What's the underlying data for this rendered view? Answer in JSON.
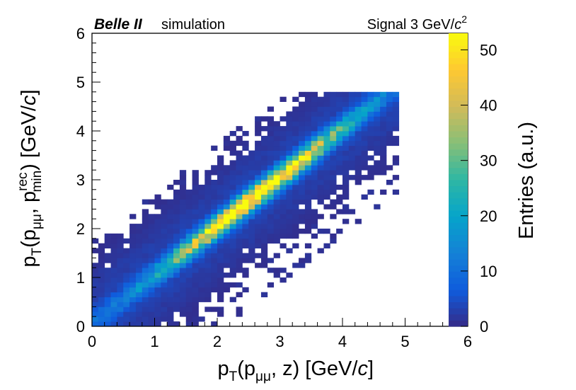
{
  "header": {
    "experiment": "Belle II",
    "tag": "simulation",
    "signal_prefix": "Signal 3 GeV/",
    "signal_unit": "c",
    "signal_exp": "2"
  },
  "axes": {
    "x_label": {
      "p": "p",
      "sub_T": "T",
      "open": "(p",
      "sub_mumu": "μμ",
      "rest": ", z) [GeV/",
      "unit": "c",
      "close": "]"
    },
    "y_label": {
      "p": "p",
      "sub_T": "T",
      "open": "(p",
      "sub_mumu": "μμ",
      "comma": ", p",
      "sup_rec": "rec",
      "sub_min": "min",
      "rest": ") [GeV/",
      "unit": "c",
      "close": "]"
    },
    "z_label": "Entries (a.u.)"
  },
  "colors": {
    "palette": [
      "#352a87",
      "#0f5cdd",
      "#1481d6",
      "#06a4ca",
      "#2eb7a4",
      "#87bf77",
      "#d1bb59",
      "#fec832",
      "#f9fb0e"
    ],
    "frame": "#000000",
    "background": "#ffffff"
  },
  "chart_data": {
    "type": "heatmap",
    "title": "",
    "xlabel": "pT(pμμ, z) [GeV/c]",
    "ylabel": "pT(pμμ, pmin rec) [GeV/c]",
    "zlabel": "Entries (a.u.)",
    "xlim": [
      0,
      6
    ],
    "ylim": [
      0,
      6
    ],
    "zlim": [
      0,
      53
    ],
    "x_ticks": [
      0,
      1,
      2,
      3,
      4,
      5,
      6
    ],
    "y_ticks": [
      0,
      1,
      2,
      3,
      4,
      5,
      6
    ],
    "z_ticks": [
      0,
      10,
      20,
      30,
      40,
      50
    ],
    "bin_width": 0.1,
    "x_range_filled": [
      0,
      4.9
    ],
    "y_range_filled": [
      0,
      4.8
    ],
    "ridge": {
      "slope": 1.0,
      "intercept": 0.05,
      "peak_entries": 52,
      "peak_x": 2.6
    },
    "populated_region_upper_edge": "y ≈ x + 1.6",
    "populated_region_lower_edge": "y ≈ x − 2.1"
  }
}
